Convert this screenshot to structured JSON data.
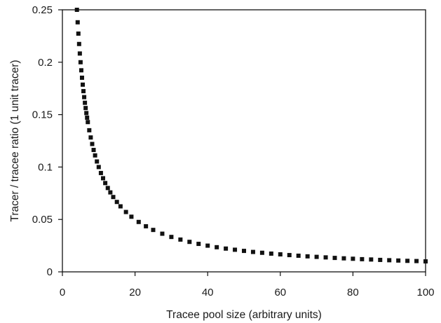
{
  "chart_data": {
    "type": "scatter",
    "title": "",
    "xlabel": "Tracee pool size (arbitrary units)",
    "ylabel": "Tracer / tracee ratio (1 unit tracer)",
    "xlim": [
      0,
      100
    ],
    "ylim": [
      0,
      0.25
    ],
    "x_ticks": [
      0,
      20,
      40,
      60,
      80,
      100
    ],
    "x_tick_labels": [
      "0",
      "20",
      "40",
      "60",
      "80",
      "100"
    ],
    "y_ticks": [
      0,
      0.05,
      0.1,
      0.15,
      0.2,
      0.25
    ],
    "y_tick_labels": [
      "0",
      "0.05",
      "0.1",
      "0.15",
      "0.2",
      "0.25"
    ],
    "grid": false,
    "legend": "none",
    "marker": "square",
    "series": [
      {
        "color": "#111111",
        "x": [
          4,
          4.2,
          4.4,
          4.6,
          4.8,
          5,
          5.2,
          5.4,
          5.6,
          5.8,
          6,
          6.2,
          6.4,
          6.6,
          6.8,
          7,
          7.4,
          7.8,
          8.2,
          8.6,
          9,
          9.5,
          10,
          10.6,
          11.2,
          11.8,
          12.5,
          13.2,
          14,
          15,
          16,
          17.5,
          19,
          21,
          23,
          25,
          27.5,
          30,
          32.5,
          35,
          37.5,
          40,
          42.5,
          45,
          47.5,
          50,
          52.5,
          55,
          57.5,
          60,
          62.5,
          65,
          67.5,
          70,
          72.5,
          75,
          77.5,
          80,
          82.5,
          85,
          87.5,
          90,
          92.5,
          95,
          97.5,
          100
        ],
        "y": [
          0.25,
          0.2381,
          0.2273,
          0.2174,
          0.2083,
          0.2,
          0.1923,
          0.1852,
          0.1786,
          0.1724,
          0.1667,
          0.1613,
          0.1563,
          0.1515,
          0.1471,
          0.1429,
          0.1351,
          0.1282,
          0.122,
          0.1163,
          0.1111,
          0.1053,
          0.1,
          0.0943,
          0.0893,
          0.0847,
          0.08,
          0.0758,
          0.0714,
          0.0667,
          0.0625,
          0.0571,
          0.0526,
          0.0476,
          0.0435,
          0.04,
          0.0364,
          0.0333,
          0.0308,
          0.0286,
          0.0267,
          0.025,
          0.0235,
          0.0222,
          0.0211,
          0.02,
          0.019,
          0.0182,
          0.0174,
          0.0167,
          0.016,
          0.0154,
          0.0148,
          0.0143,
          0.0138,
          0.0133,
          0.0129,
          0.0125,
          0.0121,
          0.0118,
          0.0114,
          0.0111,
          0.0108,
          0.0105,
          0.0103,
          0.01
        ]
      }
    ]
  }
}
